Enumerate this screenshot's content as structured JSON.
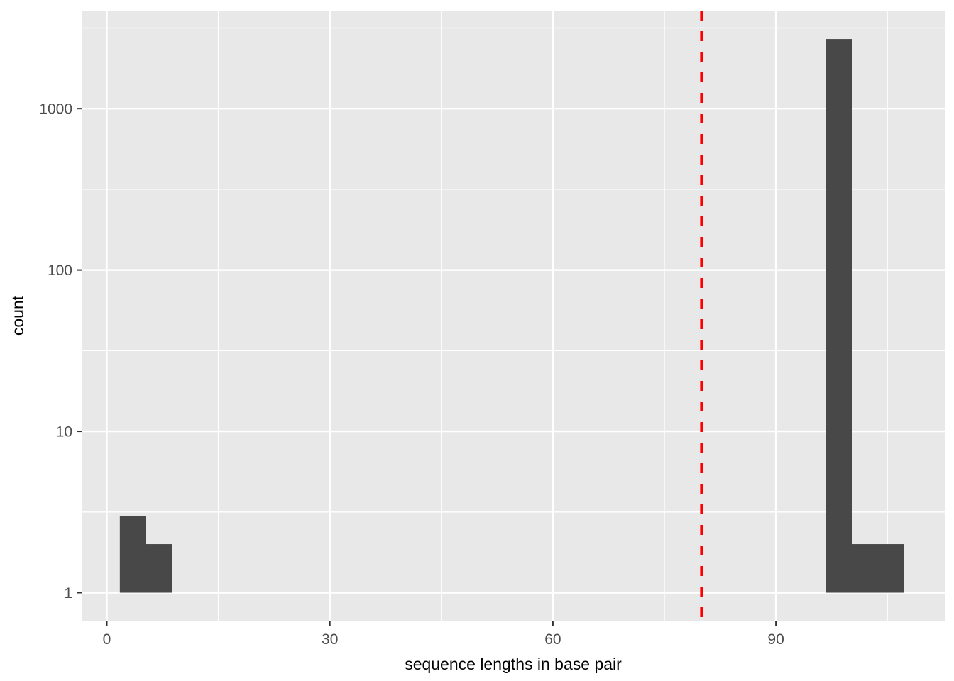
{
  "figure": {
    "kind": "ggplot-style histogram",
    "background": "#FFFFFF"
  },
  "chart_data": {
    "type": "bar",
    "subtype": "histogram",
    "title": "",
    "xlabel": "sequence lengths in base pair",
    "ylabel": "count",
    "y_scale": "log10",
    "grid": "on",
    "legend": "none",
    "x_ticks": [
      0,
      30,
      60,
      90
    ],
    "x_minor_ticks": [
      15,
      45,
      75,
      105
    ],
    "y_ticks": [
      1,
      10,
      100,
      1000
    ],
    "x_range": [
      -3.39,
      112.81
    ],
    "y_range_log": [
      -0.1736,
      3.6075
    ],
    "bars": [
      {
        "x_from": 1.75,
        "x_to": 5.25,
        "count": 3
      },
      {
        "x_from": 5.25,
        "x_to": 8.75,
        "count": 2
      },
      {
        "x_from": 96.75,
        "x_to": 100.25,
        "count": 2700
      },
      {
        "x_from": 100.25,
        "x_to": 107.25,
        "count": 2
      }
    ],
    "baseline_count": 1,
    "vline": {
      "x": 80,
      "color": "#FF0000",
      "style": "dashed",
      "dash": "14 15",
      "width": 4
    },
    "colors": {
      "bar_fill": "#484848",
      "panel_bg": "#E8E8E8",
      "grid": "#FFFFFF",
      "tick_text": "#4D4D4D",
      "axis_title": "#000000",
      "tick_mark": "#333333"
    }
  }
}
